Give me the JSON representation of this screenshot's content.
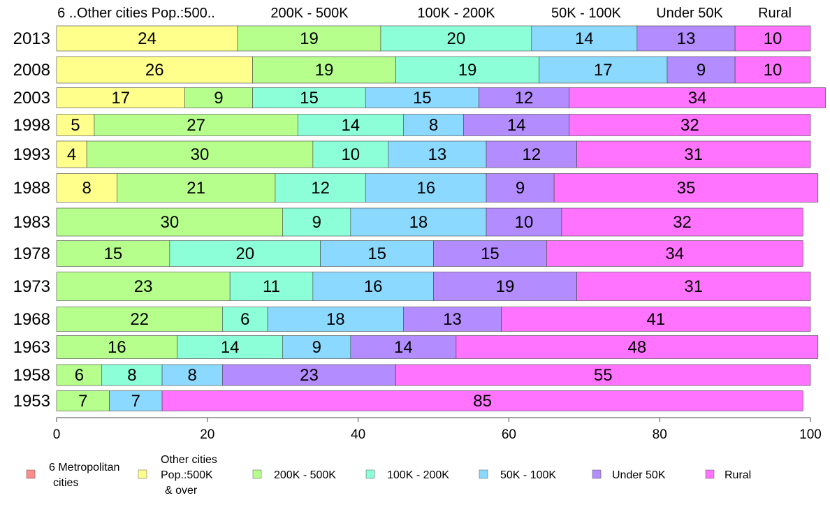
{
  "chart_data": {
    "type": "bar",
    "orientation": "horizontal",
    "stacked": true,
    "categories": [
      "2013",
      "2008",
      "2003",
      "1998",
      "1993",
      "1988",
      "1983",
      "1978",
      "1973",
      "1968",
      "1963",
      "1958",
      "1953"
    ],
    "series": [
      {
        "name": "6 Metropolitan cities",
        "color": "#ff8c8c",
        "values": [
          0,
          0,
          0,
          0,
          0,
          0,
          0,
          0,
          0,
          0,
          0,
          0,
          0
        ]
      },
      {
        "name": "Other cities Pop.:500K & over",
        "color": "#ffff8c",
        "values": [
          24,
          26,
          17,
          5,
          4,
          8,
          0,
          0,
          0,
          0,
          0,
          0,
          0
        ]
      },
      {
        "name": "200K - 500K",
        "color": "#b7ff8c",
        "values": [
          19,
          19,
          9,
          27,
          30,
          21,
          30,
          15,
          23,
          22,
          16,
          6,
          7
        ]
      },
      {
        "name": "100K - 200K",
        "color": "#8cffd9",
        "values": [
          20,
          19,
          15,
          14,
          10,
          12,
          9,
          20,
          11,
          6,
          14,
          8,
          0
        ]
      },
      {
        "name": "50K - 100K",
        "color": "#8cd9ff",
        "values": [
          14,
          17,
          15,
          8,
          13,
          16,
          18,
          15,
          16,
          18,
          9,
          8,
          7
        ]
      },
      {
        "name": "Under 50K",
        "color": "#b38cff",
        "values": [
          13,
          9,
          12,
          14,
          12,
          9,
          10,
          15,
          19,
          13,
          14,
          23,
          0
        ]
      },
      {
        "name": "Rural",
        "color": "#ff73ff",
        "values": [
          10,
          10,
          34,
          32,
          31,
          35,
          32,
          34,
          31,
          41,
          48,
          55,
          85
        ]
      }
    ],
    "xlim": [
      0,
      100
    ],
    "xticks": [
      "0",
      "20",
      "40",
      "60",
      "80",
      "100"
    ],
    "column_headers": [
      "6 ..Other cities Pop.:500..",
      "200K - 500K",
      "100K - 200K",
      "50K - 100K",
      "Under 50K",
      "Rural"
    ],
    "legend": {
      "position": "bottom",
      "entries": [
        {
          "label_lines": [
            "6 Metropolitan",
            "cities"
          ],
          "color": "#ff8c8c"
        },
        {
          "label_lines": [
            "Other cities",
            "Pop.:500K",
            "& over"
          ],
          "color": "#ffff8c"
        },
        {
          "label_lines": [
            "200K - 500K"
          ],
          "color": "#b7ff8c"
        },
        {
          "label_lines": [
            "100K - 200K"
          ],
          "color": "#8cffd9"
        },
        {
          "label_lines": [
            "50K - 100K"
          ],
          "color": "#8cd9ff"
        },
        {
          "label_lines": [
            "Under 50K"
          ],
          "color": "#b38cff"
        },
        {
          "label_lines": [
            "Rural"
          ],
          "color": "#ff73ff"
        }
      ]
    }
  }
}
